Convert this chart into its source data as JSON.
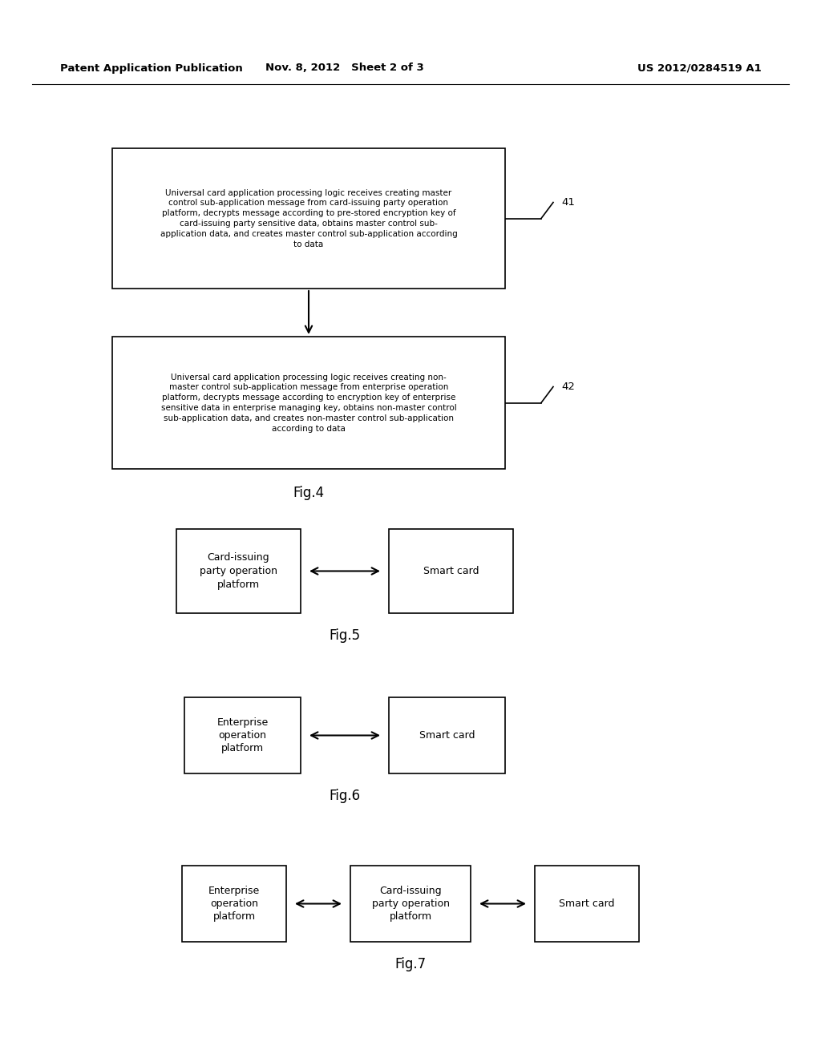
{
  "header_left": "Patent Application Publication",
  "header_mid": "Nov. 8, 2012   Sheet 2 of 3",
  "header_right": "US 2012/0284519 A1",
  "bg_color": "#ffffff",
  "fig4_box1_text": "Universal card application processing logic receives creating master\ncontrol sub-application message from card-issuing party operation\nplatform, decrypts message according to pre-stored encryption key of\ncard-issuing party sensitive data, obtains master control sub-\napplication data, and creates master control sub-application according\nto data",
  "fig4_box1_label": "41",
  "fig4_box2_text": "Universal card application processing logic receives creating non-\nmaster control sub-application message from enterprise operation\nplatform, decrypts message according to encryption key of enterprise\nsensitive data in enterprise managing key, obtains non-master control\nsub-application data, and creates non-master control sub-application\naccording to data",
  "fig4_box2_label": "42",
  "fig4_caption": "Fig.4",
  "fig5_box1_text": "Card-issuing\nparty operation\nplatform",
  "fig5_box2_text": "Smart card",
  "fig5_caption": "Fig.5",
  "fig6_box1_text": "Enterprise\noperation\nplatform",
  "fig6_box2_text": "Smart card",
  "fig6_caption": "Fig.6",
  "fig7_box1_text": "Enterprise\noperation\nplatform",
  "fig7_box2_text": "Card-issuing\nparty operation\nplatform",
  "fig7_box3_text": "Smart card",
  "fig7_caption": "Fig.7"
}
